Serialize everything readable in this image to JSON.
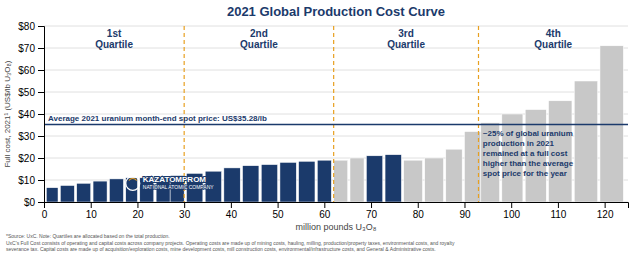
{
  "chart_data": {
    "type": "bar",
    "title": "2021 Global Production Cost Curve",
    "xlabel": "million pounds U₃O₈",
    "ylabel": "Full cost, 2021¹ (US$/lb U₃O₈)",
    "xlim": [
      0,
      125
    ],
    "ylim": [
      0,
      80
    ],
    "xticks": [
      0,
      10,
      20,
      30,
      40,
      50,
      60,
      70,
      80,
      90,
      100,
      110,
      120
    ],
    "yticks": [
      {
        "value": 0,
        "label": "$0"
      },
      {
        "value": 10,
        "label": "$10"
      },
      {
        "value": 20,
        "label": "$20"
      },
      {
        "value": 30,
        "label": "$30"
      },
      {
        "value": 40,
        "label": "$40"
      },
      {
        "value": 50,
        "label": "$50"
      },
      {
        "value": 60,
        "label": "$60"
      },
      {
        "value": 70,
        "label": "$70"
      },
      {
        "value": 80,
        "label": "$80"
      }
    ],
    "grid": true,
    "x": [
      0.5,
      3.5,
      7.0,
      10.5,
      14.0,
      17.5,
      20.5,
      24.0,
      27.0,
      30.5,
      34.5,
      38.5,
      42.5,
      46.5,
      50.5,
      54.5,
      58.5,
      62.0,
      65.5,
      69.0,
      73.0,
      77.0,
      81.5,
      86.0,
      90.0,
      93.5,
      98.0,
      103.0,
      108.0,
      113.5,
      119.0
    ],
    "widths": [
      2.5,
      3.0,
      3.0,
      3.0,
      3.0,
      2.5,
      3.0,
      3.0,
      3.0,
      3.5,
      3.5,
      3.5,
      3.5,
      3.5,
      3.5,
      3.5,
      3.0,
      3.0,
      3.0,
      3.5,
      3.5,
      4.0,
      4.0,
      3.5,
      3.5,
      4.0,
      4.5,
      4.5,
      5.0,
      5.0,
      5.0
    ],
    "values": [
      6.5,
      7.5,
      8.5,
      9.5,
      10.5,
      11.0,
      11.0,
      11.5,
      12.0,
      13.0,
      14.0,
      15.5,
      16.5,
      17.0,
      18.0,
      18.5,
      19.0,
      19.0,
      20.0,
      21.0,
      21.5,
      19.0,
      20.0,
      24.0,
      32.0,
      36.0,
      40.0,
      42.0,
      46.0,
      55.0,
      71.0
    ],
    "colors": [
      "#1B3A6B",
      "#1B3A6B",
      "#1B3A6B",
      "#1B3A6B",
      "#1B3A6B",
      "#1B3A6B",
      "#1B3A6B",
      "#1B3A6B",
      "#1B3A6B",
      "#1B3A6B",
      "#1B3A6B",
      "#1B3A6B",
      "#1B3A6B",
      "#1B3A6B",
      "#1B3A6B",
      "#1B3A6B",
      "#1B3A6B",
      "#C8C8C8",
      "#C8C8C8",
      "#1B3A6B",
      "#1B3A6B",
      "#C8C8C8",
      "#C8C8C8",
      "#C8C8C8",
      "#C8C8C8",
      "#C8C8C8",
      "#C8C8C8",
      "#C8C8C8",
      "#C8C8C8",
      "#C8C8C8",
      "#C8C8C8"
    ],
    "reference_line": {
      "value": 35.28,
      "label": "Average 2021 uranium month-end spot price: US$35.28/lb",
      "color": "#1B3A6B"
    },
    "quartile_lines": {
      "values": [
        30,
        62,
        93
      ],
      "labels": [
        "1st\nQuartile",
        "2nd\nQuartile",
        "3rd\nQuartile",
        "4th\nQuartile"
      ],
      "color": "#E8A020"
    },
    "annotation": "~25% of global uranium\nproduction in 2021\nremained at a full cost\nhigher than the average\nspot price for the year",
    "logo": [
      "KAZATOMPROM",
      "NATIONAL ATOMIC COMPANY"
    ],
    "footnotes": [
      "*Source: UxC. Note: Quartiles are allocated based on the total production.",
      "UxC's Full Cost consists of operating and capital costs across company projects. Operating costs are made up of mining costs, hauling, milling, production/property taxes, environmental costs, and royalty",
      "severance tax. Capital costs are made up of acquisition/exploration costs, mine development costs, mill construction costs, environmental/infrastructure costs, and General & Administrative costs."
    ]
  }
}
